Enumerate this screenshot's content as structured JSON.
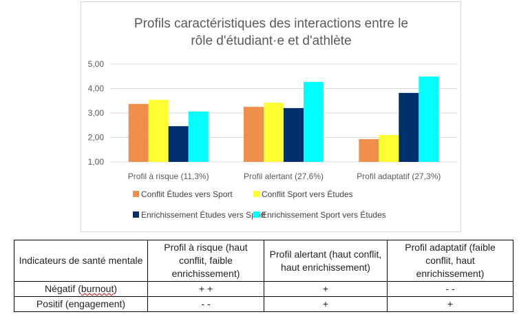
{
  "chart_data": {
    "type": "bar",
    "title": "Profils caractéristiques des interactions entre le rôle d'étudiant·e et d'athlète",
    "title_lines": [
      "Profils caractéristiques des interactions entre le",
      "rôle d'étudiant·e et d'athlète"
    ],
    "categories": [
      "Profil à risque (11,3%)",
      "Profil alertant (27,6%)",
      "Profil adaptatif (27,3%)"
    ],
    "ylim": [
      1,
      5
    ],
    "yticks": [
      "1,00",
      "2,00",
      "3,00",
      "4,00",
      "5,00"
    ],
    "grid": true,
    "legend_position": "bottom",
    "series": [
      {
        "name": "Conflit Études vers Sport",
        "color": "#f08f4b",
        "values": [
          3.37,
          3.25,
          1.93
        ]
      },
      {
        "name": "Conflit Sport vers Études",
        "color": "#ffff33",
        "values": [
          3.54,
          3.42,
          2.1
        ]
      },
      {
        "name": "Enrichissement Études vers Sport",
        "color": "#002f6e",
        "values": [
          2.46,
          3.2,
          3.82
        ]
      },
      {
        "name": "Enrichissement Sport vers Études",
        "color": "#00ffff",
        "values": [
          3.06,
          4.27,
          4.49
        ]
      }
    ]
  },
  "table": {
    "header": [
      "Indicateurs de santé mentale",
      "Profil à risque (haut conflit, faible enrichissement)",
      "Profil alertant (haut conflit, haut enrichissement)",
      "Profil adaptatif (faible conflit, haut enrichissement)"
    ],
    "rows": [
      {
        "label": "Négatif (",
        "label_underlined": "burnout",
        "label_end": ")",
        "cells": [
          "+ +",
          "+",
          "- -"
        ]
      },
      {
        "label": "Positif (engagement)",
        "cells": [
          "- -",
          "+",
          "+"
        ]
      }
    ]
  }
}
